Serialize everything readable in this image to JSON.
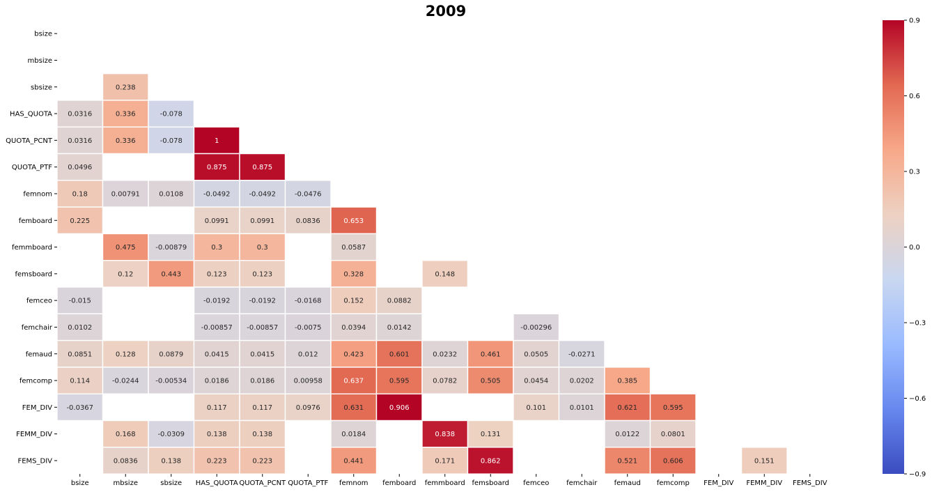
{
  "chart_data": {
    "type": "heatmap",
    "title": "2009",
    "labels": [
      "bsize",
      "mbsize",
      "sbsize",
      "HAS_QUOTA",
      "QUOTA_PCNT",
      "QUOTA_PTF",
      "femnom",
      "femboard",
      "femmboard",
      "femsboard",
      "femceo",
      "femchair",
      "femaud",
      "femcomp",
      "FEM_DIV",
      "FEMM_DIV",
      "FEMS_DIV"
    ],
    "cells": [
      {
        "row": 2,
        "col": 1,
        "value": 0.238,
        "label": "0.238"
      },
      {
        "row": 3,
        "col": 0,
        "value": 0.0316,
        "label": "0.0316"
      },
      {
        "row": 3,
        "col": 1,
        "value": 0.336,
        "label": "0.336"
      },
      {
        "row": 3,
        "col": 2,
        "value": -0.078,
        "label": "-0.078"
      },
      {
        "row": 4,
        "col": 0,
        "value": 0.0316,
        "label": "0.0316"
      },
      {
        "row": 4,
        "col": 1,
        "value": 0.336,
        "label": "0.336"
      },
      {
        "row": 4,
        "col": 2,
        "value": -0.078,
        "label": "-0.078"
      },
      {
        "row": 4,
        "col": 3,
        "value": 1,
        "label": "1"
      },
      {
        "row": 5,
        "col": 0,
        "value": 0.0496,
        "label": "0.0496"
      },
      {
        "row": 5,
        "col": 3,
        "value": 0.875,
        "label": "0.875"
      },
      {
        "row": 5,
        "col": 4,
        "value": 0.875,
        "label": "0.875"
      },
      {
        "row": 6,
        "col": 0,
        "value": 0.18,
        "label": "0.18"
      },
      {
        "row": 6,
        "col": 1,
        "value": 0.00791,
        "label": "0.00791"
      },
      {
        "row": 6,
        "col": 2,
        "value": 0.0108,
        "label": "0.0108"
      },
      {
        "row": 6,
        "col": 3,
        "value": -0.0492,
        "label": "-0.0492"
      },
      {
        "row": 6,
        "col": 4,
        "value": -0.0492,
        "label": "-0.0492"
      },
      {
        "row": 6,
        "col": 5,
        "value": -0.0476,
        "label": "-0.0476"
      },
      {
        "row": 7,
        "col": 0,
        "value": 0.225,
        "label": "0.225"
      },
      {
        "row": 7,
        "col": 3,
        "value": 0.0991,
        "label": "0.0991"
      },
      {
        "row": 7,
        "col": 4,
        "value": 0.0991,
        "label": "0.0991"
      },
      {
        "row": 7,
        "col": 5,
        "value": 0.0836,
        "label": "0.0836"
      },
      {
        "row": 7,
        "col": 6,
        "value": 0.653,
        "label": "0.653"
      },
      {
        "row": 8,
        "col": 1,
        "value": 0.475,
        "label": "0.475"
      },
      {
        "row": 8,
        "col": 2,
        "value": -0.00879,
        "label": "-0.00879"
      },
      {
        "row": 8,
        "col": 3,
        "value": 0.3,
        "label": "0.3"
      },
      {
        "row": 8,
        "col": 4,
        "value": 0.3,
        "label": "0.3"
      },
      {
        "row": 8,
        "col": 6,
        "value": 0.0587,
        "label": "0.0587"
      },
      {
        "row": 9,
        "col": 1,
        "value": 0.12,
        "label": "0.12"
      },
      {
        "row": 9,
        "col": 2,
        "value": 0.443,
        "label": "0.443"
      },
      {
        "row": 9,
        "col": 3,
        "value": 0.123,
        "label": "0.123"
      },
      {
        "row": 9,
        "col": 4,
        "value": 0.123,
        "label": "0.123"
      },
      {
        "row": 9,
        "col": 6,
        "value": 0.328,
        "label": "0.328"
      },
      {
        "row": 9,
        "col": 8,
        "value": 0.148,
        "label": "0.148"
      },
      {
        "row": 10,
        "col": 0,
        "value": -0.015,
        "label": "-0.015"
      },
      {
        "row": 10,
        "col": 3,
        "value": -0.0192,
        "label": "-0.0192"
      },
      {
        "row": 10,
        "col": 4,
        "value": -0.0192,
        "label": "-0.0192"
      },
      {
        "row": 10,
        "col": 5,
        "value": -0.0168,
        "label": "-0.0168"
      },
      {
        "row": 10,
        "col": 6,
        "value": 0.152,
        "label": "0.152"
      },
      {
        "row": 10,
        "col": 7,
        "value": 0.0882,
        "label": "0.0882"
      },
      {
        "row": 11,
        "col": 0,
        "value": 0.0102,
        "label": "0.0102"
      },
      {
        "row": 11,
        "col": 3,
        "value": -0.00857,
        "label": "-0.00857"
      },
      {
        "row": 11,
        "col": 4,
        "value": -0.00857,
        "label": "-0.00857"
      },
      {
        "row": 11,
        "col": 5,
        "value": -0.0075,
        "label": "-0.0075"
      },
      {
        "row": 11,
        "col": 6,
        "value": 0.0394,
        "label": "0.0394"
      },
      {
        "row": 11,
        "col": 7,
        "value": 0.0142,
        "label": "0.0142"
      },
      {
        "row": 11,
        "col": 10,
        "value": -0.00296,
        "label": "-0.00296"
      },
      {
        "row": 12,
        "col": 0,
        "value": 0.0851,
        "label": "0.0851"
      },
      {
        "row": 12,
        "col": 1,
        "value": 0.128,
        "label": "0.128"
      },
      {
        "row": 12,
        "col": 2,
        "value": 0.0879,
        "label": "0.0879"
      },
      {
        "row": 12,
        "col": 3,
        "value": 0.0415,
        "label": "0.0415"
      },
      {
        "row": 12,
        "col": 4,
        "value": 0.0415,
        "label": "0.0415"
      },
      {
        "row": 12,
        "col": 5,
        "value": 0.012,
        "label": "0.012"
      },
      {
        "row": 12,
        "col": 6,
        "value": 0.423,
        "label": "0.423"
      },
      {
        "row": 12,
        "col": 7,
        "value": 0.601,
        "label": "0.601"
      },
      {
        "row": 12,
        "col": 8,
        "value": 0.0232,
        "label": "0.0232"
      },
      {
        "row": 12,
        "col": 9,
        "value": 0.461,
        "label": "0.461"
      },
      {
        "row": 12,
        "col": 10,
        "value": 0.0505,
        "label": "0.0505"
      },
      {
        "row": 12,
        "col": 11,
        "value": -0.0271,
        "label": "-0.0271"
      },
      {
        "row": 13,
        "col": 0,
        "value": 0.114,
        "label": "0.114"
      },
      {
        "row": 13,
        "col": 1,
        "value": -0.0244,
        "label": "-0.0244"
      },
      {
        "row": 13,
        "col": 2,
        "value": -0.00534,
        "label": "-0.00534"
      },
      {
        "row": 13,
        "col": 3,
        "value": 0.0186,
        "label": "0.0186"
      },
      {
        "row": 13,
        "col": 4,
        "value": 0.0186,
        "label": "0.0186"
      },
      {
        "row": 13,
        "col": 5,
        "value": 0.00958,
        "label": "0.00958"
      },
      {
        "row": 13,
        "col": 6,
        "value": 0.637,
        "label": "0.637"
      },
      {
        "row": 13,
        "col": 7,
        "value": 0.595,
        "label": "0.595"
      },
      {
        "row": 13,
        "col": 8,
        "value": 0.0782,
        "label": "0.0782"
      },
      {
        "row": 13,
        "col": 9,
        "value": 0.505,
        "label": "0.505"
      },
      {
        "row": 13,
        "col": 10,
        "value": 0.0454,
        "label": "0.0454"
      },
      {
        "row": 13,
        "col": 11,
        "value": 0.0202,
        "label": "0.0202"
      },
      {
        "row": 13,
        "col": 12,
        "value": 0.385,
        "label": "0.385"
      },
      {
        "row": 14,
        "col": 0,
        "value": -0.0367,
        "label": "-0.0367"
      },
      {
        "row": 14,
        "col": 3,
        "value": 0.117,
        "label": "0.117"
      },
      {
        "row": 14,
        "col": 4,
        "value": 0.117,
        "label": "0.117"
      },
      {
        "row": 14,
        "col": 5,
        "value": 0.0976,
        "label": "0.0976"
      },
      {
        "row": 14,
        "col": 6,
        "value": 0.631,
        "label": "0.631"
      },
      {
        "row": 14,
        "col": 7,
        "value": 0.906,
        "label": "0.906"
      },
      {
        "row": 14,
        "col": 10,
        "value": 0.101,
        "label": "0.101"
      },
      {
        "row": 14,
        "col": 11,
        "value": 0.0101,
        "label": "0.0101"
      },
      {
        "row": 14,
        "col": 12,
        "value": 0.621,
        "label": "0.621"
      },
      {
        "row": 14,
        "col": 13,
        "value": 0.595,
        "label": "0.595"
      },
      {
        "row": 15,
        "col": 1,
        "value": 0.168,
        "label": "0.168"
      },
      {
        "row": 15,
        "col": 2,
        "value": -0.0309,
        "label": "-0.0309"
      },
      {
        "row": 15,
        "col": 3,
        "value": 0.138,
        "label": "0.138"
      },
      {
        "row": 15,
        "col": 4,
        "value": 0.138,
        "label": "0.138"
      },
      {
        "row": 15,
        "col": 6,
        "value": 0.0184,
        "label": "0.0184"
      },
      {
        "row": 15,
        "col": 8,
        "value": 0.838,
        "label": "0.838"
      },
      {
        "row": 15,
        "col": 9,
        "value": 0.131,
        "label": "0.131"
      },
      {
        "row": 15,
        "col": 12,
        "value": 0.0122,
        "label": "0.0122"
      },
      {
        "row": 15,
        "col": 13,
        "value": 0.0801,
        "label": "0.0801"
      },
      {
        "row": 16,
        "col": 1,
        "value": 0.0836,
        "label": "0.0836"
      },
      {
        "row": 16,
        "col": 2,
        "value": 0.138,
        "label": "0.138"
      },
      {
        "row": 16,
        "col": 3,
        "value": 0.223,
        "label": "0.223"
      },
      {
        "row": 16,
        "col": 4,
        "value": 0.223,
        "label": "0.223"
      },
      {
        "row": 16,
        "col": 6,
        "value": 0.441,
        "label": "0.441"
      },
      {
        "row": 16,
        "col": 8,
        "value": 0.171,
        "label": "0.171"
      },
      {
        "row": 16,
        "col": 9,
        "value": 0.862,
        "label": "0.862"
      },
      {
        "row": 16,
        "col": 12,
        "value": 0.521,
        "label": "0.521"
      },
      {
        "row": 16,
        "col": 13,
        "value": 0.606,
        "label": "0.606"
      },
      {
        "row": 16,
        "col": 15,
        "value": 0.151,
        "label": "0.151"
      }
    ],
    "colorbar": {
      "min": -0.9,
      "max": 0.9,
      "ticks": [
        "−0.9",
        "−0.6",
        "−0.3",
        "0.0",
        "0.3",
        "0.6",
        "0.9"
      ],
      "colormap": "coolwarm",
      "colors": [
        "#3b4cc0",
        "#6788ee",
        "#9abbff",
        "#c9d7f0",
        "#edd1c2",
        "#f7a889",
        "#e26952",
        "#b40426"
      ]
    },
    "grid": false,
    "legend": "right"
  }
}
